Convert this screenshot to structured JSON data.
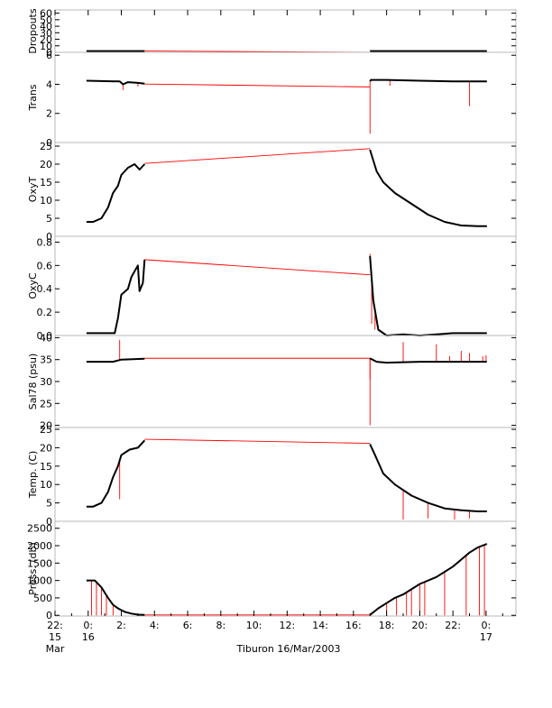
{
  "chart_data": {
    "type": "line",
    "xlabel": "Tiburon 16/Mar/2003",
    "x_ticks": [
      {
        "hour": -2,
        "lines": [
          "22:",
          "15",
          "Mar"
        ]
      },
      {
        "hour": 0,
        "lines": [
          "0:",
          "16"
        ]
      },
      {
        "hour": 2,
        "lines": [
          "2:"
        ]
      },
      {
        "hour": 4,
        "lines": [
          "4:"
        ]
      },
      {
        "hour": 6,
        "lines": [
          "6:"
        ]
      },
      {
        "hour": 8,
        "lines": [
          "8:"
        ]
      },
      {
        "hour": 10,
        "lines": [
          "10:"
        ]
      },
      {
        "hour": 12,
        "lines": [
          "12:"
        ]
      },
      {
        "hour": 14,
        "lines": [
          "14:"
        ]
      },
      {
        "hour": 16,
        "lines": [
          "16:"
        ]
      },
      {
        "hour": 18,
        "lines": [
          "18:"
        ]
      },
      {
        "hour": 20,
        "lines": [
          "20:"
        ]
      },
      {
        "hour": 22,
        "lines": [
          "22:"
        ]
      },
      {
        "hour": 24,
        "lines": [
          "0:",
          "17"
        ]
      }
    ],
    "xlim": [
      -2,
      25.8
    ],
    "gap": {
      "start": 3.4,
      "end": 17.0
    },
    "colors": {
      "data": "#000000",
      "outlier": "#ff0000"
    },
    "panels": [
      {
        "ylabel": "Dropouts",
        "ylim": [
          0,
          65
        ],
        "yticks": [
          0,
          10,
          20,
          30,
          40,
          50,
          60
        ],
        "series": [
          [
            -0.1,
            2
          ],
          [
            3.4,
            2
          ],
          [
            17.0,
            2
          ],
          [
            24.05,
            2
          ]
        ],
        "gap_values": [
          2,
          0
        ],
        "spikes": []
      },
      {
        "ylabel": "Trans",
        "ylim": [
          0,
          6.2
        ],
        "yticks": [
          0,
          2,
          4,
          6
        ],
        "series": [
          [
            -0.1,
            4.25
          ],
          [
            1.9,
            4.2
          ],
          [
            2.1,
            4.0
          ],
          [
            2.4,
            4.15
          ],
          [
            3.0,
            4.1
          ],
          [
            3.4,
            4.05
          ],
          [
            17.0,
            4.2
          ],
          [
            17.05,
            4.3
          ],
          [
            18.0,
            4.3
          ],
          [
            20.0,
            4.25
          ],
          [
            22.0,
            4.2
          ],
          [
            24.05,
            4.2
          ]
        ],
        "gap_values": [
          4.02,
          3.82
        ],
        "spikes": [
          [
            2.1,
            3.6
          ],
          [
            3.0,
            3.85
          ],
          [
            17.0,
            0.6
          ],
          [
            18.2,
            3.9
          ],
          [
            23.0,
            2.5
          ]
        ]
      },
      {
        "ylabel": "OxyT",
        "ylim": [
          0,
          26
        ],
        "yticks": [
          0,
          5,
          10,
          15,
          20,
          25
        ],
        "series": [
          [
            -0.1,
            4
          ],
          [
            0.3,
            4
          ],
          [
            0.8,
            5
          ],
          [
            1.2,
            8
          ],
          [
            1.5,
            12
          ],
          [
            1.8,
            14
          ],
          [
            2.0,
            17
          ],
          [
            2.4,
            19
          ],
          [
            2.8,
            20
          ],
          [
            3.1,
            18.5
          ],
          [
            3.4,
            20
          ],
          [
            17.0,
            24
          ],
          [
            17.4,
            18
          ],
          [
            17.8,
            15
          ],
          [
            18.5,
            12
          ],
          [
            19.5,
            9
          ],
          [
            20.5,
            6
          ],
          [
            21.5,
            4
          ],
          [
            22.5,
            3
          ],
          [
            23.5,
            2.8
          ],
          [
            24.05,
            2.8
          ]
        ],
        "gap_values": [
          20.2,
          24.3
        ],
        "spikes": []
      },
      {
        "ylabel": "OxyC",
        "ylim": [
          0,
          0.85
        ],
        "yticks": [
          0.0,
          0.2,
          0.4,
          0.6,
          0.8
        ],
        "series": [
          [
            -0.1,
            0.02
          ],
          [
            1.6,
            0.02
          ],
          [
            1.8,
            0.15
          ],
          [
            2.0,
            0.35
          ],
          [
            2.4,
            0.4
          ],
          [
            2.6,
            0.5
          ],
          [
            2.8,
            0.55
          ],
          [
            3.0,
            0.6
          ],
          [
            3.1,
            0.38
          ],
          [
            3.3,
            0.45
          ],
          [
            3.4,
            0.65
          ],
          [
            17.0,
            0.68
          ],
          [
            17.2,
            0.3
          ],
          [
            17.5,
            0.05
          ],
          [
            18.0,
            0.0
          ],
          [
            19.0,
            0.01
          ],
          [
            20.0,
            0.0
          ],
          [
            21.0,
            0.01
          ],
          [
            22.0,
            0.02
          ],
          [
            23.0,
            0.02
          ],
          [
            24.05,
            0.02
          ]
        ],
        "gap_values": [
          0.65,
          0.52
        ],
        "spikes": [
          [
            17.0,
            0.7
          ],
          [
            17.1,
            0.1
          ],
          [
            17.3,
            0.05
          ]
        ]
      },
      {
        "ylabel": "Sal78 (psu)",
        "ylim": [
          19.5,
          40.5
        ],
        "yticks": [
          20,
          25,
          30,
          35,
          40
        ],
        "series": [
          [
            -0.1,
            34.5
          ],
          [
            1.5,
            34.5
          ],
          [
            2.0,
            35.0
          ],
          [
            3.4,
            35.2
          ],
          [
            17.0,
            35.3
          ],
          [
            17.4,
            34.5
          ],
          [
            18.0,
            34.3
          ],
          [
            20.0,
            34.5
          ],
          [
            22.0,
            34.5
          ],
          [
            24.05,
            34.5
          ]
        ],
        "gap_values": [
          35.3,
          35.3
        ],
        "spikes": [
          [
            1.9,
            39.5
          ],
          [
            17.0,
            20.0
          ],
          [
            17.0,
            30.5
          ],
          [
            19.0,
            39.0
          ],
          [
            21.0,
            38.5
          ],
          [
            21.8,
            35.8
          ],
          [
            22.5,
            37.0
          ],
          [
            23.0,
            36.5
          ],
          [
            23.8,
            35.8
          ],
          [
            24.0,
            36.0
          ]
        ]
      },
      {
        "ylabel": "Temp. (C)",
        "ylim": [
          0,
          25.5
        ],
        "yticks": [
          0,
          5,
          10,
          15,
          20,
          25
        ],
        "series": [
          [
            -0.1,
            4
          ],
          [
            0.3,
            4
          ],
          [
            0.8,
            5
          ],
          [
            1.2,
            8
          ],
          [
            1.5,
            12
          ],
          [
            1.8,
            15
          ],
          [
            2.0,
            18
          ],
          [
            2.5,
            19.5
          ],
          [
            3.0,
            20
          ],
          [
            3.4,
            22
          ],
          [
            17.0,
            21
          ],
          [
            17.3,
            18
          ],
          [
            17.8,
            13
          ],
          [
            18.5,
            10
          ],
          [
            19.5,
            7
          ],
          [
            20.5,
            5
          ],
          [
            21.5,
            3.5
          ],
          [
            22.5,
            3
          ],
          [
            23.5,
            2.7
          ],
          [
            24.05,
            2.7
          ]
        ],
        "gap_values": [
          22.3,
          21.2
        ],
        "spikes": [
          [
            1.9,
            6.0
          ],
          [
            19.0,
            0.5
          ],
          [
            20.5,
            0.8
          ],
          [
            22.1,
            0.5
          ],
          [
            23.0,
            0.8
          ]
        ]
      },
      {
        "ylabel": "Press. (db)",
        "ylim": [
          -20,
          2700
        ],
        "yticks": [
          0,
          500,
          1000,
          1500,
          2000,
          2500
        ],
        "series": [
          [
            -0.1,
            1000
          ],
          [
            0.4,
            1000
          ],
          [
            0.8,
            800
          ],
          [
            1.2,
            500
          ],
          [
            1.5,
            300
          ],
          [
            1.8,
            200
          ],
          [
            2.2,
            100
          ],
          [
            2.6,
            50
          ],
          [
            3.0,
            20
          ],
          [
            3.4,
            10
          ],
          [
            17.0,
            10
          ],
          [
            17.5,
            200
          ],
          [
            18.0,
            350
          ],
          [
            18.5,
            500
          ],
          [
            19.0,
            600
          ],
          [
            20.0,
            900
          ],
          [
            21.0,
            1100
          ],
          [
            22.0,
            1400
          ],
          [
            22.5,
            1600
          ],
          [
            23.0,
            1800
          ],
          [
            23.5,
            1950
          ],
          [
            24.05,
            2050
          ]
        ],
        "gap_values": [
          10,
          10
        ],
        "spikes": [
          [
            0.2,
            0
          ],
          [
            0.5,
            0
          ],
          [
            0.8,
            0
          ],
          [
            1.1,
            0
          ],
          [
            1.5,
            0
          ],
          [
            18.0,
            0
          ],
          [
            18.6,
            0
          ],
          [
            19.2,
            0
          ],
          [
            19.5,
            0
          ],
          [
            20.0,
            0
          ],
          [
            20.3,
            0
          ],
          [
            21.5,
            0
          ],
          [
            22.8,
            0
          ],
          [
            23.6,
            0
          ],
          [
            23.9,
            0
          ]
        ]
      }
    ]
  }
}
